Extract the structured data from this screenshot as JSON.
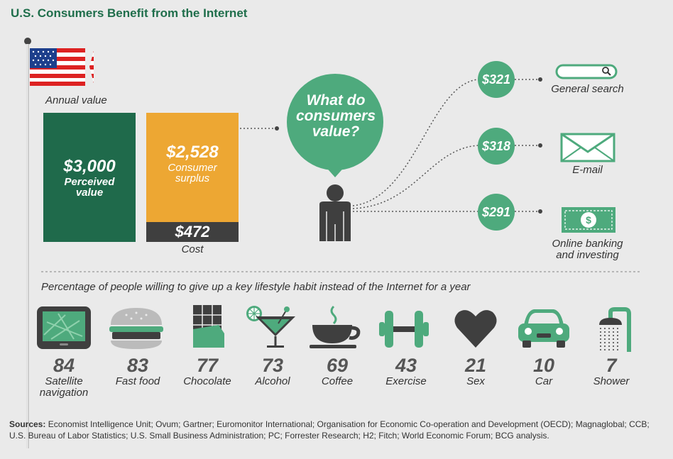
{
  "title": "U.S. Consumers Benefit from the Internet",
  "annual_value_label": "Annual value",
  "perceived": {
    "amount": "$3,000",
    "label_line1": "Perceived",
    "label_line2": "value"
  },
  "surplus": {
    "amount": "$2,528",
    "label_line1": "Consumer",
    "label_line2": "surplus"
  },
  "cost": {
    "amount": "$472",
    "label": "Cost"
  },
  "question": {
    "line1": "What do",
    "line2": "consumers",
    "line3": "value?"
  },
  "services": [
    {
      "amount": "$321",
      "label_line1": "General search",
      "label_line2": "",
      "icon": "search-bar-icon"
    },
    {
      "amount": "$318",
      "label_line1": "E-mail",
      "label_line2": "",
      "icon": "envelope-icon"
    },
    {
      "amount": "$291",
      "label_line1": "Online banking",
      "label_line2": "and investing",
      "icon": "dollar-bill-icon"
    }
  ],
  "habits_title": "Percentage of people willing to give up a key lifestyle habit instead of the Internet for a year",
  "habits": [
    {
      "value": "84",
      "label_line1": "Satellite",
      "label_line2": "navigation",
      "icon": "gps-icon"
    },
    {
      "value": "83",
      "label_line1": "Fast food",
      "label_line2": "",
      "icon": "burger-icon"
    },
    {
      "value": "77",
      "label_line1": "Chocolate",
      "label_line2": "",
      "icon": "chocolate-icon"
    },
    {
      "value": "73",
      "label_line1": "Alcohol",
      "label_line2": "",
      "icon": "cocktail-icon"
    },
    {
      "value": "69",
      "label_line1": "Coffee",
      "label_line2": "",
      "icon": "coffee-icon"
    },
    {
      "value": "43",
      "label_line1": "Exercise",
      "label_line2": "",
      "icon": "dumbbell-icon"
    },
    {
      "value": "21",
      "label_line1": "Sex",
      "label_line2": "",
      "icon": "heart-icon"
    },
    {
      "value": "10",
      "label_line1": "Car",
      "label_line2": "",
      "icon": "car-icon"
    },
    {
      "value": "7",
      "label_line1": "Shower",
      "label_line2": "",
      "icon": "shower-icon"
    }
  ],
  "sources_label": "Sources:",
  "sources_text": "Economist Intelligence Unit; Ovum; Gartner; Euromonitor International; Organisation for Economic Co-operation and Development (OECD); Magnaglobal; CCB; U.S. Bureau of Labor Statistics; U.S. Small Business Administration; PC; Forrester Research; H2; Fitch; World Economic Forum; BCG analysis.",
  "colors": {
    "dark_green": "#1f6a4b",
    "mid_green": "#4eaa7d",
    "orange": "#eda733",
    "charcoal": "#3f3f3f"
  }
}
